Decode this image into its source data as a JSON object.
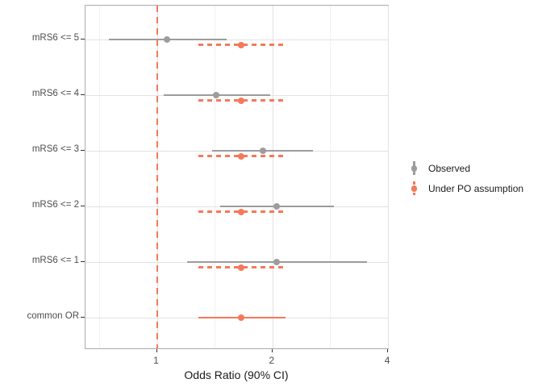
{
  "chart_data": {
    "type": "scatter",
    "subtype": "forest-pointrange",
    "title": "",
    "xlabel": "Odds Ratio (90% CI)",
    "ylabel": "",
    "x_scale": "log2",
    "x_range": [
      0.66,
      4.05
    ],
    "x_ticks": [
      {
        "value": 1,
        "label": "1"
      },
      {
        "value": 2,
        "label": "2"
      },
      {
        "value": 4,
        "label": "4"
      }
    ],
    "x_minor_gridlines": [
      0.707,
      1.414,
      2.828
    ],
    "grid": "on",
    "reference_line": {
      "value": 1,
      "style": "dashed",
      "color": "#f4795b"
    },
    "categories": [
      "mRS6 <= 5",
      "mRS6 <= 4",
      "mRS6 <= 3",
      "mRS6 <= 2",
      "mRS6 <= 1",
      "common OR"
    ],
    "series": [
      {
        "name": "Observed",
        "color": "#9c9c9c",
        "points": [
          {
            "category": "mRS6 <= 5",
            "or": 1.06,
            "ci_low": 0.75,
            "ci_high": 1.52,
            "style": "solid"
          },
          {
            "category": "mRS6 <= 4",
            "or": 1.43,
            "ci_low": 1.04,
            "ci_high": 1.97,
            "style": "solid"
          },
          {
            "category": "mRS6 <= 3",
            "or": 1.89,
            "ci_low": 1.39,
            "ci_high": 2.55,
            "style": "solid"
          },
          {
            "category": "mRS6 <= 2",
            "or": 2.05,
            "ci_low": 1.46,
            "ci_high": 2.89,
            "style": "solid"
          },
          {
            "category": "mRS6 <= 1",
            "or": 2.05,
            "ci_low": 1.2,
            "ci_high": 3.53,
            "style": "solid"
          }
        ]
      },
      {
        "name": "Under PO assumption",
        "color": "#f4795b",
        "points": [
          {
            "category": "mRS6 <= 5",
            "or": 1.66,
            "ci_low": 1.28,
            "ci_high": 2.16,
            "style": "dashed"
          },
          {
            "category": "mRS6 <= 4",
            "or": 1.66,
            "ci_low": 1.28,
            "ci_high": 2.16,
            "style": "dashed"
          },
          {
            "category": "mRS6 <= 3",
            "or": 1.66,
            "ci_low": 1.28,
            "ci_high": 2.16,
            "style": "dashed"
          },
          {
            "category": "mRS6 <= 2",
            "or": 1.66,
            "ci_low": 1.28,
            "ci_high": 2.16,
            "style": "dashed"
          },
          {
            "category": "mRS6 <= 1",
            "or": 1.66,
            "ci_low": 1.28,
            "ci_high": 2.16,
            "style": "dashed"
          },
          {
            "category": "common OR",
            "or": 1.66,
            "ci_low": 1.28,
            "ci_high": 2.16,
            "style": "solid"
          }
        ]
      }
    ],
    "legend": {
      "position": "right",
      "entries": [
        "Observed",
        "Under PO assumption"
      ]
    }
  },
  "colors": {
    "observed": "#9c9c9c",
    "po_assumption": "#f4795b",
    "axis_text": "#4d4d4d",
    "axis_title": "#1a1a1a",
    "panel_border": "#ababab",
    "grid_major": "#e2e2e2",
    "grid_minor": "#f0f0f0"
  }
}
